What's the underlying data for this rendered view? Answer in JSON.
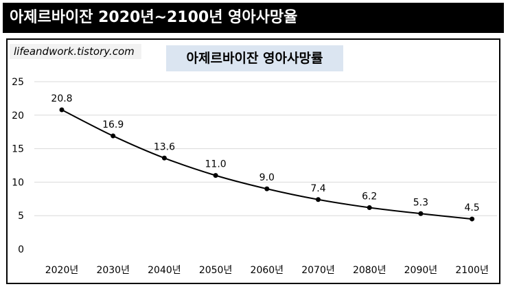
{
  "header": {
    "title": "아제르바이잔 2020년~2100년 영아사망율"
  },
  "watermark": "lifeandwork.tistory.com",
  "chart_data": {
    "type": "line",
    "title": "아제르바이잔 영아사망률",
    "categories": [
      "2020년",
      "2030년",
      "2040년",
      "2050년",
      "2060년",
      "2070년",
      "2080년",
      "2090년",
      "2100년"
    ],
    "values": [
      20.8,
      16.9,
      13.6,
      11.0,
      9.0,
      7.4,
      6.2,
      5.3,
      4.5
    ],
    "value_labels": [
      "20.8",
      "16.9",
      "13.6",
      "11.0",
      "9.0",
      "7.4",
      "6.2",
      "5.3",
      "4.5"
    ],
    "ylim": [
      0,
      25
    ],
    "yticks": [
      0,
      5,
      10,
      15,
      20,
      25
    ],
    "grid": true,
    "line_color": "#000000",
    "gridline_color": "#d9d9d9"
  }
}
